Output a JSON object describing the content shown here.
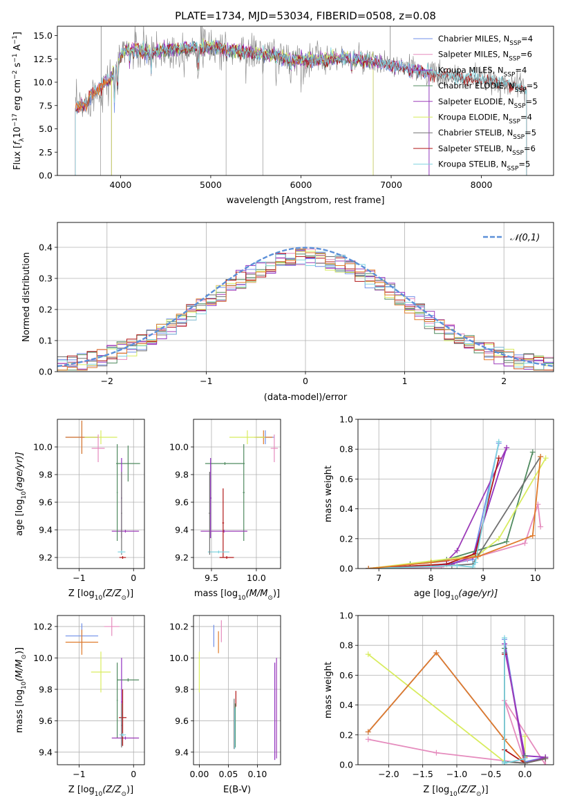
{
  "colors": {
    "Chabrier MILES": "#6f8fe8",
    "Salpeter MILES": "#e58bbd",
    "Kroupa MILES": "#8f2fbf",
    "Chabrier ELODIE": "#4f8a5f",
    "Salpeter ELODIE": "#9c3bb8",
    "Kroupa ELODIE": "#d8ec5e",
    "Chabrier STELIB": "#707070",
    "Salpeter STELIB": "#b01515",
    "Kroupa STELIB": "#7fd3df",
    "orange": "#e07a2a",
    "normal": "#5b8fd8"
  },
  "chart_data": [
    {
      "id": "spectrum",
      "type": "line",
      "title": "PLATE=1734, MJD=53034, FIBERID=0508, z=0.08",
      "xlabel": "wavelength [Angstrom, rest frame]",
      "ylabel_parts": [
        "Flux [",
        "f",
        "λ",
        "10",
        "−17",
        " erg cm",
        "−2",
        " s",
        "−1",
        " A",
        "−1",
        "]"
      ],
      "xlim": [
        3300,
        8800
      ],
      "ylim": [
        0,
        16
      ],
      "xticks": [
        4000,
        5000,
        6000,
        7000,
        8000
      ],
      "yticks": [
        0.0,
        2.5,
        5.0,
        7.5,
        10.0,
        12.5,
        15.0
      ],
      "grid": false,
      "legend_placement": "upper-right",
      "continuum": [
        [
          3500,
          8.2
        ],
        [
          3700,
          8.8
        ],
        [
          3900,
          10.5
        ],
        [
          4050,
          13.6
        ],
        [
          4300,
          13.2
        ],
        [
          4600,
          13.5
        ],
        [
          5000,
          13.8
        ],
        [
          5500,
          13.1
        ],
        [
          6000,
          12.3
        ],
        [
          6500,
          12.6
        ],
        [
          7000,
          11.8
        ],
        [
          7500,
          10.8
        ],
        [
          8000,
          10.3
        ],
        [
          8400,
          9.6
        ],
        [
          8500,
          9.2
        ]
      ],
      "series": [
        {
          "legend": [
            "Chabrier MILES, N",
            "SSP",
            "=4"
          ],
          "color": "#6f8fe8",
          "xrange": [
            3500,
            7420
          ]
        },
        {
          "legend": [
            "Salpeter MILES, N",
            "SSP",
            "=6"
          ],
          "color": "#e58bbd",
          "xrange": [
            3500,
            7420
          ]
        },
        {
          "legend": [
            "Kroupa MILES, N",
            "SSP",
            "=4"
          ],
          "color": "#8f2fbf",
          "xrange": [
            3500,
            7420
          ]
        },
        {
          "legend": [
            "Chabrier ELODIE, N",
            "SSP",
            "=5"
          ],
          "color": "#4f8a5f",
          "xrange": [
            3900,
            6800
          ]
        },
        {
          "legend": [
            "Salpeter ELODIE, N",
            "SSP",
            "=5"
          ],
          "color": "#9c3bb8",
          "xrange": [
            3900,
            6800
          ]
        },
        {
          "legend": [
            "Kroupa ELODIE, N",
            "SSP",
            "=4"
          ],
          "color": "#d8ec5e",
          "xrange": [
            3900,
            6800
          ]
        },
        {
          "legend": [
            "Chabrier STELIB, N",
            "SSP",
            "=5"
          ],
          "color": "#707070",
          "xrange": [
            3500,
            8500
          ]
        },
        {
          "legend": [
            "Salpeter STELIB, N",
            "SSP",
            "=6"
          ],
          "color": "#b01515",
          "xrange": [
            3500,
            8500
          ]
        },
        {
          "legend": [
            "Kroupa STELIB, N",
            "SSP",
            "=5"
          ],
          "color": "#7fd3df",
          "xrange": [
            3500,
            8500
          ]
        }
      ]
    },
    {
      "id": "residuals",
      "type": "histogram",
      "xlabel": "(data-model)/error",
      "ylabel": "Normed distribution",
      "xlim": [
        -2.5,
        2.5
      ],
      "ylim": [
        0,
        0.48
      ],
      "xticks": [
        -2,
        -1,
        0,
        1,
        2
      ],
      "yticks": [
        0.0,
        0.1,
        0.2,
        0.3,
        0.4
      ],
      "grid": true,
      "legend": "𝒩(0,1)",
      "legend_placement": "upper-right",
      "bin_width": 0.1,
      "series_colors": [
        "#6f8fe8",
        "#e58bbd",
        "#8f2fbf",
        "#4f8a5f",
        "#9c3bb8",
        "#d8ec5e",
        "#707070",
        "#b01515",
        "#7fd3df",
        "#e07a2a"
      ]
    },
    {
      "id": "age-vs-Z",
      "type": "errorbar",
      "xlabel_parts": [
        "Z [log",
        "10",
        "(Z/Z",
        "⊙",
        ")]"
      ],
      "ylabel_parts": [
        "age  [log",
        "10",
        "(age/yr)]"
      ],
      "xlim": [
        -1.4,
        0.2
      ],
      "ylim": [
        9.12,
        10.2
      ],
      "xticks": [
        -1,
        0
      ],
      "yticks": [
        9.2,
        9.4,
        9.6,
        9.8,
        10.0
      ],
      "grid": true,
      "points": [
        {
          "x": -0.95,
          "y": 10.07,
          "xerr": 0.3,
          "yerr": 0.12,
          "color": "#6f8fe8"
        },
        {
          "x": -0.95,
          "y": 10.07,
          "xerr": 0.3,
          "yerr": 0.12,
          "color": "#e07a2a"
        },
        {
          "x": -0.6,
          "y": 10.07,
          "xerr": 0.3,
          "yerr": 0.05,
          "color": "#d8ec5e"
        },
        {
          "x": -0.65,
          "y": 9.99,
          "xerr": 0.12,
          "yerr": 0.1,
          "color": "#e58bbd"
        },
        {
          "x": -0.1,
          "y": 9.88,
          "xerr": 0.22,
          "yerr": 0.13,
          "color": "#4f8a5f"
        },
        {
          "x": -0.22,
          "y": 9.63,
          "xerr": 0.01,
          "yerr": 0.29,
          "color": "#8f2fbf"
        },
        {
          "x": -0.15,
          "y": 9.39,
          "xerr": 0.25,
          "yerr": 0.01,
          "color": "#9c3bb8"
        },
        {
          "x": -0.22,
          "y": 9.52,
          "xerr": 0.01,
          "yerr": 0.3,
          "color": "#707070"
        },
        {
          "x": -0.2,
          "y": 9.2,
          "xerr": 0.06,
          "yerr": 0.01,
          "color": "#b01515"
        },
        {
          "x": -0.22,
          "y": 9.24,
          "xerr": 0.07,
          "yerr": 0.01,
          "color": "#7fd3df"
        },
        {
          "x": -0.3,
          "y": 9.67,
          "xerr": 0.01,
          "yerr": 0.35,
          "color": "#4f8a5f"
        }
      ]
    },
    {
      "id": "age-vs-mass",
      "type": "errorbar",
      "xlabel_parts": [
        "mass [log",
        "10",
        "(M/M",
        "⊙",
        ")]"
      ],
      "ylabel_parts": [],
      "xlim": [
        9.3,
        10.27
      ],
      "ylim": [
        9.12,
        10.2
      ],
      "xticks": [
        9.5,
        10.0
      ],
      "yticks": [
        9.2,
        9.4,
        9.6,
        9.8,
        10.0
      ],
      "grid": true,
      "points": [
        {
          "x": 10.1,
          "y": 10.07,
          "xerr": 0.1,
          "yerr": 0.05,
          "color": "#6f8fe8"
        },
        {
          "x": 10.08,
          "y": 10.07,
          "xerr": 0.1,
          "yerr": 0.05,
          "color": "#e07a2a"
        },
        {
          "x": 9.9,
          "y": 10.07,
          "xerr": 0.2,
          "yerr": 0.05,
          "color": "#d8ec5e"
        },
        {
          "x": 10.2,
          "y": 9.99,
          "xerr": 0.04,
          "yerr": 0.1,
          "color": "#e58bbd"
        },
        {
          "x": 9.65,
          "y": 9.88,
          "xerr": 0.22,
          "yerr": 0.01,
          "color": "#4f8a5f"
        },
        {
          "x": 9.86,
          "y": 9.67,
          "xerr": 0.01,
          "yerr": 0.35,
          "color": "#4f8a5f"
        },
        {
          "x": 9.49,
          "y": 9.63,
          "xerr": 0.01,
          "yerr": 0.29,
          "color": "#8f2fbf"
        },
        {
          "x": 9.64,
          "y": 9.39,
          "xerr": 0.26,
          "yerr": 0.01,
          "color": "#9c3bb8"
        },
        {
          "x": 9.63,
          "y": 9.45,
          "xerr": 0.01,
          "yerr": 0.25,
          "color": "#b01515"
        },
        {
          "x": 9.67,
          "y": 9.2,
          "xerr": 0.08,
          "yerr": 0.01,
          "color": "#b01515"
        },
        {
          "x": 9.58,
          "y": 9.24,
          "xerr": 0.12,
          "yerr": 0.01,
          "color": "#7fd3df"
        },
        {
          "x": 9.48,
          "y": 9.52,
          "xerr": 0.01,
          "yerr": 0.3,
          "color": "#707070"
        }
      ]
    },
    {
      "id": "mass-weight-vs-age",
      "type": "line",
      "xlabel_parts": [
        "age  [log",
        "10",
        "(age/yr)]"
      ],
      "ylabel": "mass weight",
      "xlim": [
        6.6,
        10.35
      ],
      "ylim": [
        0,
        1.0
      ],
      "xticks": [
        7,
        8,
        9,
        10
      ],
      "yticks": [
        0.0,
        0.2,
        0.4,
        0.6,
        0.8,
        1.0
      ],
      "grid": true,
      "series": [
        {
          "color": "#6f8fe8",
          "x": [
            6.8,
            8.0,
            8.5,
            8.8,
            9.3
          ],
          "y": [
            0.0,
            0.02,
            0.04,
            0.06,
            0.84
          ]
        },
        {
          "color": "#e58bbd",
          "x": [
            6.8,
            8.2,
            8.7,
            9.8,
            10.05,
            10.1
          ],
          "y": [
            0.0,
            0.01,
            0.06,
            0.17,
            0.43,
            0.28
          ]
        },
        {
          "color": "#8f2fbf",
          "x": [
            6.8,
            8.4,
            8.8,
            9.45
          ],
          "y": [
            0.0,
            0.03,
            0.08,
            0.81
          ]
        },
        {
          "color": "#4f8a5f",
          "x": [
            6.8,
            7.6,
            8.3,
            9.45,
            9.95
          ],
          "y": [
            0.0,
            0.03,
            0.06,
            0.18,
            0.78
          ]
        },
        {
          "color": "#9c3bb8",
          "x": [
            6.8,
            8.3,
            8.5,
            9.45
          ],
          "y": [
            0.0,
            0.05,
            0.12,
            0.81
          ]
        },
        {
          "color": "#d8ec5e",
          "x": [
            6.8,
            8.0,
            8.9,
            9.3,
            10.2
          ],
          "y": [
            0.0,
            0.05,
            0.09,
            0.2,
            0.74
          ]
        },
        {
          "color": "#707070",
          "x": [
            6.8,
            8.4,
            8.8,
            10.1
          ],
          "y": [
            0.0,
            0.02,
            0.03,
            0.75
          ]
        },
        {
          "color": "#b01515",
          "x": [
            6.8,
            8.3,
            8.85,
            9.3
          ],
          "y": [
            0.0,
            0.03,
            0.1,
            0.74
          ]
        },
        {
          "color": "#7fd3df",
          "x": [
            6.8,
            8.5,
            8.8,
            8.85,
            9.3
          ],
          "y": [
            0.0,
            0.02,
            0.01,
            0.04,
            0.85
          ]
        },
        {
          "color": "#e07a2a",
          "x": [
            6.8,
            8.0,
            8.9,
            9.95,
            10.1
          ],
          "y": [
            0.0,
            0.04,
            0.08,
            0.22,
            0.75
          ]
        }
      ]
    },
    {
      "id": "mass-vs-Z",
      "type": "errorbar",
      "xlabel_parts": [
        "Z [log",
        "10",
        "(Z/Z",
        "⊙",
        ")]"
      ],
      "ylabel_parts": [
        "mass [log",
        "10",
        "(M/M",
        "⊙",
        ")]"
      ],
      "xlim": [
        -1.4,
        0.2
      ],
      "ylim": [
        9.32,
        10.27
      ],
      "xticks": [
        -1,
        0
      ],
      "yticks": [
        9.4,
        9.6,
        9.8,
        10.0,
        10.2
      ],
      "grid": true,
      "points": [
        {
          "x": -0.95,
          "y": 10.14,
          "xerr": 0.3,
          "yerr": 0.08,
          "color": "#6f8fe8"
        },
        {
          "x": -0.95,
          "y": 10.1,
          "xerr": 0.3,
          "yerr": 0.08,
          "color": "#e07a2a"
        },
        {
          "x": -0.4,
          "y": 10.2,
          "xerr": 0.14,
          "yerr": 0.06,
          "color": "#e58bbd"
        },
        {
          "x": -0.6,
          "y": 9.91,
          "xerr": 0.18,
          "yerr": 0.13,
          "color": "#d8ec5e"
        },
        {
          "x": -0.1,
          "y": 9.86,
          "xerr": 0.2,
          "yerr": 0.01,
          "color": "#4f8a5f"
        },
        {
          "x": -0.3,
          "y": 9.73,
          "xerr": 0.01,
          "yerr": 0.24,
          "color": "#4f8a5f"
        },
        {
          "x": -0.22,
          "y": 9.72,
          "xerr": 0.01,
          "yerr": 0.28,
          "color": "#8f2fbf"
        },
        {
          "x": -0.15,
          "y": 9.49,
          "xerr": 0.25,
          "yerr": 0.01,
          "color": "#9c3bb8"
        },
        {
          "x": -0.2,
          "y": 9.62,
          "xerr": 0.07,
          "yerr": 0.18,
          "color": "#b01515"
        },
        {
          "x": -0.22,
          "y": 9.57,
          "xerr": 0.01,
          "yerr": 0.14,
          "color": "#707070"
        },
        {
          "x": -0.2,
          "y": 9.51,
          "xerr": 0.06,
          "yerr": 0.01,
          "color": "#7fd3df"
        }
      ]
    },
    {
      "id": "mass-vs-EBV",
      "type": "errorbar",
      "xlabel": "E(B-V)",
      "ylabel_parts": [],
      "xlim": [
        -0.01,
        0.14
      ],
      "ylim": [
        9.32,
        10.27
      ],
      "xticks": [
        0.0,
        0.05,
        0.1
      ],
      "yticks": [
        9.4,
        9.6,
        9.8,
        10.0,
        10.2
      ],
      "grid": true,
      "points": [
        {
          "x": 0.025,
          "y": 10.14,
          "xerr": 0.0,
          "yerr": 0.07,
          "color": "#6f8fe8"
        },
        {
          "x": 0.033,
          "y": 10.1,
          "xerr": 0.0,
          "yerr": 0.07,
          "color": "#e07a2a"
        },
        {
          "x": 0.038,
          "y": 10.17,
          "xerr": 0.0,
          "yerr": 0.07,
          "color": "#e58bbd"
        },
        {
          "x": 0.0,
          "y": 9.91,
          "xerr": 0.0,
          "yerr": 0.13,
          "color": "#d8ec5e"
        },
        {
          "x": 0.063,
          "y": 9.74,
          "xerr": 0.0,
          "yerr": 0.05,
          "color": "#b01515"
        },
        {
          "x": 0.06,
          "y": 9.58,
          "xerr": 0.0,
          "yerr": 0.16,
          "color": "#707070"
        },
        {
          "x": 0.062,
          "y": 9.57,
          "xerr": 0.0,
          "yerr": 0.14,
          "color": "#4f8a5f"
        },
        {
          "x": 0.061,
          "y": 9.55,
          "xerr": 0.0,
          "yerr": 0.13,
          "color": "#7fd3df"
        },
        {
          "x": 0.13,
          "y": 9.66,
          "xerr": 0.0,
          "yerr": 0.31,
          "color": "#8f2fbf"
        },
        {
          "x": 0.133,
          "y": 9.68,
          "xerr": 0.0,
          "yerr": 0.32,
          "color": "#9c3bb8"
        }
      ]
    },
    {
      "id": "mass-weight-vs-Z",
      "type": "line",
      "xlabel_parts": [
        "Z [log",
        "10",
        "(Z/Z",
        "⊙",
        ")]"
      ],
      "ylabel": "mass weight",
      "xlim": [
        -2.45,
        0.42
      ],
      "ylim": [
        0,
        1.0
      ],
      "xticks": [
        -2.0,
        -1.5,
        -1.0,
        -0.5,
        0.0
      ],
      "yticks": [
        0.0,
        0.2,
        0.4,
        0.6,
        0.8,
        1.0
      ],
      "grid": true,
      "series": [
        {
          "color": "#e58bbd",
          "x": [
            -2.3,
            -1.3,
            0.0,
            -0.3,
            0.3,
            0.3
          ],
          "y": [
            0.17,
            0.08,
            0.01,
            0.43,
            0.0,
            0.04
          ]
        },
        {
          "color": "#d8ec5e",
          "x": [
            -2.3,
            -0.3,
            0.0,
            0.0
          ],
          "y": [
            0.74,
            0.02,
            0.01,
            0.19
          ]
        },
        {
          "color": "#6f8fe8",
          "x": [
            -2.3,
            -1.3,
            -0.3,
            -0.3,
            0.0,
            0.3
          ],
          "y": [
            0.22,
            0.75,
            0.17,
            0.84,
            0.02,
            0.05
          ]
        },
        {
          "color": "#e07a2a",
          "x": [
            -2.3,
            -1.3,
            -0.3,
            0.0,
            0.0
          ],
          "y": [
            0.22,
            0.75,
            0.17,
            0.01,
            0.05
          ]
        },
        {
          "color": "#8f2fbf",
          "x": [
            -0.3,
            -0.3,
            0.0,
            0.3
          ],
          "y": [
            0.81,
            0.78,
            0.06,
            0.05
          ]
        },
        {
          "color": "#9c3bb8",
          "x": [
            -0.3,
            0.0,
            0.3,
            0.3
          ],
          "y": [
            0.81,
            0.01,
            0.05,
            0.05
          ]
        },
        {
          "color": "#4f8a5f",
          "x": [
            -0.3,
            -0.3,
            0.0,
            0.0
          ],
          "y": [
            0.78,
            0.02,
            0.01,
            0.06
          ]
        },
        {
          "color": "#b01515",
          "x": [
            -0.3,
            -0.3,
            0.0,
            0.3
          ],
          "y": [
            0.74,
            0.1,
            0.01,
            0.04
          ]
        },
        {
          "color": "#707070",
          "x": [
            -0.3,
            -0.3,
            0.0,
            0.3
          ],
          "y": [
            0.75,
            0.02,
            0.01,
            0.04
          ]
        },
        {
          "color": "#7fd3df",
          "x": [
            -0.3,
            -0.3,
            -0.3,
            0.0
          ],
          "y": [
            0.85,
            0.02,
            0.01,
            0.04
          ]
        }
      ]
    }
  ]
}
